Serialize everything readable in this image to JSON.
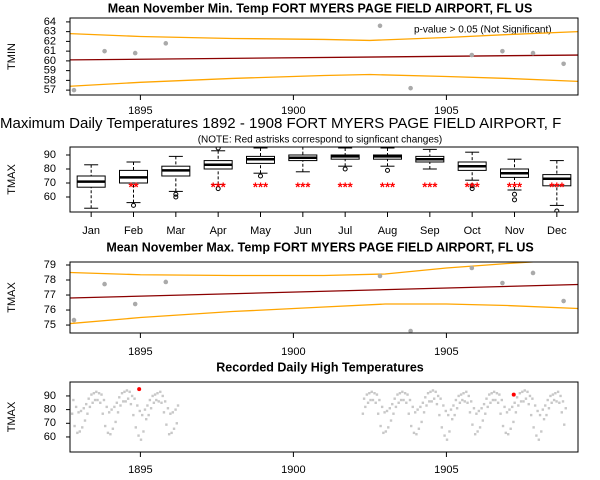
{
  "chart_data": [
    {
      "type": "trend",
      "title": "Mean November Min. Temp FORT MYERS PAGE FIELD AIRPORT, FL US",
      "ylabel": "TMIN",
      "annotation": "p-value > 0.05 (Not Significant)",
      "x": [
        1892.83,
        1893.83,
        1894.83,
        1895.83,
        1902.83,
        1903.83,
        1905.83,
        1906.83,
        1907.83,
        1908.83
      ],
      "values": [
        57.0,
        61.0,
        60.8,
        61.8,
        63.6,
        57.2,
        60.6,
        61.0,
        60.8,
        59.7
      ],
      "color": "#aaaaaa",
      "lines": [
        {
          "x": [
            1892.7,
            1909.3
          ],
          "values": [
            60.1,
            60.6
          ],
          "color": "#8b0000"
        },
        {
          "x": [
            1892.7,
            1895,
            1898,
            1901,
            1902.5,
            1905,
            1907,
            1909.3
          ],
          "values": [
            62.8,
            62.5,
            62.3,
            62.2,
            62.1,
            62.4,
            62.7,
            63.0
          ],
          "color": "#ffa500"
        },
        {
          "x": [
            1892.7,
            1895,
            1898,
            1901,
            1902.5,
            1905,
            1907,
            1909.3
          ],
          "values": [
            57.4,
            57.8,
            58.2,
            58.5,
            58.6,
            58.4,
            58.2,
            57.9
          ],
          "color": "#ffa500"
        }
      ],
      "xlim": [
        1892.7,
        1909.3
      ],
      "xticks": [
        1895,
        1900,
        1905
      ],
      "ylim": [
        56.5,
        64.4
      ],
      "yticks": [
        57,
        58,
        59,
        60,
        61,
        62,
        63,
        64
      ]
    },
    {
      "type": "box",
      "title": "Maximum Daily Temperatures 1892 - 1908 FORT MYERS PAGE FIELD AIRPORT, F",
      "subtitle": "(NOTE: Red astrisks correspond to signficant changes)",
      "ylabel": "TMAX",
      "categories": [
        "Jan",
        "Feb",
        "Mar",
        "Apr",
        "May",
        "Jun",
        "Jul",
        "Aug",
        "Sep",
        "Oct",
        "Nov",
        "Dec"
      ],
      "boxes": [
        {
          "whisker_low": 52,
          "q1": 67,
          "median": 71,
          "q3": 75,
          "whisker_high": 83,
          "outliers": []
        },
        {
          "whisker_low": 56,
          "q1": 70,
          "median": 74,
          "q3": 79,
          "whisker_high": 85,
          "outliers": [
            54
          ]
        },
        {
          "whisker_low": 64,
          "q1": 75,
          "median": 79,
          "q3": 82,
          "whisker_high": 89,
          "outliers": [
            62,
            60
          ]
        },
        {
          "whisker_low": 69,
          "q1": 80,
          "median": 83,
          "q3": 86,
          "whisker_high": 93,
          "outliers": [
            66,
            95
          ]
        },
        {
          "whisker_low": 77,
          "q1": 84,
          "median": 87,
          "q3": 89,
          "whisker_high": 95,
          "outliers": [
            75
          ]
        },
        {
          "whisker_low": 78,
          "q1": 86,
          "median": 88,
          "q3": 90,
          "whisker_high": 96,
          "outliers": []
        },
        {
          "whisker_low": 82,
          "q1": 87,
          "median": 89,
          "q3": 90,
          "whisker_high": 95,
          "outliers": [
            80
          ]
        },
        {
          "whisker_low": 82,
          "q1": 87,
          "median": 89,
          "q3": 90,
          "whisker_high": 95,
          "outliers": [
            79
          ]
        },
        {
          "whisker_low": 80,
          "q1": 85,
          "median": 87,
          "q3": 89,
          "whisker_high": 94,
          "outliers": []
        },
        {
          "whisker_low": 72,
          "q1": 79,
          "median": 82,
          "q3": 85,
          "whisker_high": 92,
          "outliers": [
            68,
            66
          ]
        },
        {
          "whisker_low": 65,
          "q1": 74,
          "median": 77,
          "q3": 80,
          "whisker_high": 87,
          "outliers": [
            62,
            58
          ]
        },
        {
          "whisker_low": 54,
          "q1": 68,
          "median": 73,
          "q3": 76,
          "whisker_high": 86,
          "outliers": [
            50
          ]
        }
      ],
      "asterisks": [
        null,
        "**",
        null,
        "***",
        "***",
        "***",
        "***",
        "***",
        "***",
        "***",
        "***",
        "***"
      ],
      "asterisk_color": "#ff0000",
      "ylim": [
        49.3,
        95.7
      ],
      "yticks": [
        60,
        70,
        80,
        90
      ]
    },
    {
      "type": "trend",
      "title": "Mean November Max. Temp FORT MYERS PAGE FIELD AIRPORT, FL US",
      "ylabel": "TMAX",
      "x": [
        1892.83,
        1893.83,
        1894.83,
        1895.83,
        1902.83,
        1903.83,
        1905.83,
        1906.83,
        1907.83,
        1908.83
      ],
      "values": [
        75.33,
        77.73,
        76.4,
        77.87,
        78.27,
        74.6,
        78.8,
        77.8,
        78.47,
        76.6
      ],
      "color": "#aaaaaa",
      "lines": [
        {
          "x": [
            1892.7,
            1909.3
          ],
          "values": [
            76.8,
            77.7
          ],
          "color": "#8b0000"
        },
        {
          "x": [
            1892.7,
            1895,
            1898,
            1901,
            1903,
            1905,
            1907,
            1909.3
          ],
          "values": [
            78.5,
            78.35,
            78.3,
            78.3,
            78.4,
            78.8,
            79.1,
            79.4
          ],
          "color": "#ffa500"
        },
        {
          "x": [
            1892.7,
            1895,
            1898,
            1901,
            1903,
            1905,
            1907,
            1909.3
          ],
          "values": [
            75.1,
            75.5,
            75.9,
            76.2,
            76.4,
            76.4,
            76.3,
            76.1
          ],
          "color": "#ffa500"
        }
      ],
      "xlim": [
        1892.7,
        1909.3
      ],
      "xticks": [
        1895,
        1900,
        1905
      ],
      "ylim": [
        74.47,
        79.2
      ],
      "yticks": [
        75,
        76,
        77,
        78,
        79
      ]
    },
    {
      "type": "daily",
      "title": "Recorded Daily High Temperatures",
      "ylabel": "TMAX",
      "color": "#c8c8c8",
      "x": [
        1892.77,
        1892.81,
        1892.85,
        1892.9,
        1892.94,
        1892.98,
        1893.02,
        1893.06,
        1893.1,
        1893.15,
        1893.19,
        1893.23,
        1893.27,
        1893.31,
        1893.35,
        1893.4,
        1893.44,
        1893.48,
        1893.52,
        1893.56,
        1893.6,
        1893.65,
        1893.69,
        1893.73,
        1893.77,
        1893.81,
        1893.85,
        1893.9,
        1893.94,
        1893.98,
        1894.02,
        1894.06,
        1894.1,
        1894.15,
        1894.19,
        1894.23,
        1894.27,
        1894.31,
        1894.35,
        1894.4,
        1894.44,
        1894.48,
        1894.52,
        1894.56,
        1894.6,
        1894.65,
        1894.69,
        1894.73,
        1894.77,
        1894.81,
        1894.85,
        1894.9,
        1894.94,
        1894.98,
        1895.02,
        1895.06,
        1895.1,
        1895.15,
        1895.19,
        1895.23,
        1895.27,
        1895.31,
        1895.35,
        1895.4,
        1895.44,
        1895.48,
        1895.52,
        1895.56,
        1895.6,
        1895.65,
        1895.69,
        1895.73,
        1895.77,
        1895.81,
        1895.85,
        1895.9,
        1895.94,
        1895.98,
        1896.02,
        1896.06,
        1896.1,
        1896.15,
        1896.19,
        1896.23,
        1902.27,
        1902.31,
        1902.35,
        1902.4,
        1902.44,
        1902.48,
        1902.52,
        1902.56,
        1902.6,
        1902.65,
        1902.69,
        1902.73,
        1902.77,
        1902.81,
        1902.85,
        1902.9,
        1902.94,
        1902.98,
        1903.02,
        1903.06,
        1903.1,
        1903.15,
        1903.19,
        1903.23,
        1903.27,
        1903.31,
        1903.35,
        1903.4,
        1903.44,
        1903.48,
        1903.52,
        1903.56,
        1903.6,
        1903.65,
        1903.69,
        1903.73,
        1903.77,
        1903.81,
        1903.85,
        1903.9,
        1903.94,
        1903.98,
        1904.02,
        1904.06,
        1904.1,
        1904.15,
        1904.19,
        1904.23,
        1904.27,
        1904.31,
        1904.35,
        1904.4,
        1904.44,
        1904.48,
        1904.52,
        1904.56,
        1904.6,
        1904.65,
        1904.69,
        1904.73,
        1904.77,
        1904.81,
        1904.85,
        1904.9,
        1904.94,
        1904.98,
        1905.02,
        1905.06,
        1905.1,
        1905.15,
        1905.19,
        1905.23,
        1905.27,
        1905.31,
        1905.35,
        1905.4,
        1905.44,
        1905.48,
        1905.52,
        1905.56,
        1905.6,
        1905.65,
        1905.69,
        1905.73,
        1905.77,
        1905.81,
        1905.85,
        1905.9,
        1905.94,
        1905.98,
        1906.02,
        1906.06,
        1906.1,
        1906.15,
        1906.19,
        1906.23,
        1906.27,
        1906.31,
        1906.35,
        1906.4,
        1906.44,
        1906.48,
        1906.52,
        1906.56,
        1906.6,
        1906.65,
        1906.69,
        1906.73,
        1906.77,
        1906.81,
        1906.85,
        1906.9,
        1906.94,
        1906.98,
        1907.02,
        1907.06,
        1907.1,
        1907.15,
        1907.19,
        1907.23,
        1907.27,
        1907.31,
        1907.35,
        1907.4,
        1907.44,
        1907.48,
        1907.52,
        1907.56,
        1907.6,
        1907.65,
        1907.69,
        1907.73,
        1907.77,
        1907.81,
        1907.85,
        1907.9,
        1907.94,
        1907.98,
        1908.02,
        1908.06,
        1908.1,
        1908.15,
        1908.19,
        1908.23,
        1908.27,
        1908.31,
        1908.35,
        1908.4,
        1908.44,
        1908.48,
        1908.52,
        1908.56,
        1908.6,
        1908.65,
        1908.69,
        1908.73,
        1908.77,
        1908.81,
        1908.85,
        1908.9
      ],
      "values": [
        77,
        87,
        68,
        82,
        63,
        78,
        64,
        79,
        67,
        81,
        72,
        84,
        77,
        88,
        82,
        91,
        85,
        92,
        87,
        93,
        87,
        92,
        85,
        91,
        77,
        87,
        68,
        82,
        63,
        78,
        62,
        80,
        66,
        82,
        71,
        85,
        78,
        89,
        83,
        92,
        86,
        93,
        86,
        94,
        88,
        93,
        84,
        90,
        76,
        88,
        67,
        83,
        61,
        79,
        58,
        76,
        64,
        80,
        73,
        83,
        76,
        87,
        81,
        90,
        85,
        91,
        87,
        92,
        86,
        93,
        85,
        90,
        78,
        86,
        69,
        81,
        62,
        77,
        63,
        78,
        66,
        80,
        70,
        83,
        77,
        88,
        82,
        91,
        85,
        92,
        87,
        93,
        87,
        92,
        85,
        91,
        77,
        87,
        68,
        82,
        63,
        78,
        64,
        79,
        67,
        81,
        72,
        84,
        77,
        88,
        82,
        91,
        85,
        92,
        87,
        93,
        87,
        92,
        85,
        91,
        77,
        87,
        68,
        82,
        63,
        78,
        62,
        80,
        66,
        82,
        71,
        85,
        78,
        89,
        83,
        92,
        86,
        93,
        86,
        94,
        88,
        93,
        84,
        90,
        76,
        88,
        67,
        83,
        61,
        79,
        58,
        76,
        64,
        80,
        73,
        83,
        76,
        87,
        81,
        90,
        85,
        91,
        87,
        92,
        86,
        93,
        85,
        90,
        78,
        86,
        69,
        81,
        62,
        77,
        64,
        79,
        67,
        81,
        72,
        84,
        77,
        88,
        82,
        91,
        85,
        92,
        87,
        93,
        87,
        92,
        85,
        91,
        77,
        87,
        68,
        82,
        63,
        78,
        62,
        80,
        66,
        82,
        71,
        85,
        78,
        89,
        83,
        92,
        86,
        93,
        86,
        94,
        88,
        93,
        84,
        90,
        76,
        88,
        67,
        83,
        61,
        79,
        58,
        76,
        64,
        80,
        73,
        83,
        76,
        87,
        81,
        90,
        85,
        91,
        87,
        92,
        86,
        93,
        85,
        90,
        78,
        86,
        69,
        81
      ],
      "records": {
        "x": [
          1894.96,
          1907.2
        ],
        "values": [
          95,
          91
        ],
        "color": "#ff0000"
      },
      "xlim": [
        1892.7,
        1909.3
      ],
      "xticks": [
        1895,
        1900,
        1905
      ],
      "ylim": [
        49.0,
        100.2
      ],
      "yticks": [
        60,
        70,
        80,
        90
      ]
    }
  ]
}
